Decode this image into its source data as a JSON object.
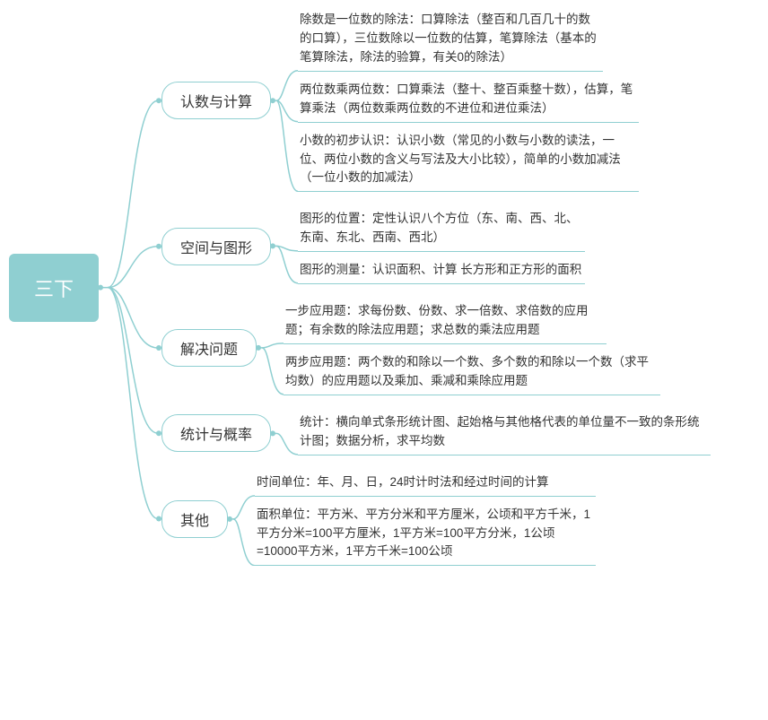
{
  "colors": {
    "accent": "#8fcfd1",
    "text": "#333333",
    "root_bg": "#8fcfd1",
    "root_text": "#ffffff",
    "background": "#ffffff"
  },
  "typography": {
    "root_fontsize": 22,
    "branch_fontsize": 16,
    "leaf_fontsize": 13.5,
    "font_family": "Microsoft YaHei"
  },
  "root": {
    "label": "三下"
  },
  "branches": [
    {
      "label": "认数与计算",
      "leaves": [
        "除数是一位数的除法：口算除法（整百和几百几十的数的口算），三位数除以一位数的估算，笔算除法（基本的笔算除法，除法的验算，有关0的除法）",
        "两位数乘两位数：口算乘法（整十、整百乘整十数），估算，笔算乘法（两位数乘两位数的不进位和进位乘法）",
        "小数的初步认识：认识小数（常见的小数与小数的读法，一位、两位小数的含义与写法及大小比较），简单的小数加减法（一位小数的加减法）"
      ]
    },
    {
      "label": "空间与图形",
      "leaves": [
        "图形的位置：定性认识八个方位（东、南、西、北、东南、东北、西南、西北）",
        "图形的测量：认识面积、计算 长方形和正方形的面积"
      ]
    },
    {
      "label": "解决问题",
      "leaves": [
        "一步应用题：求每份数、份数、求一倍数、求倍数的应用题；有余数的除法应用题；求总数的乘法应用题",
        "两步应用题：两个数的和除以一个数、多个数的和除以一个数（求平均数）的应用题以及乘加、乘减和乘除应用题"
      ]
    },
    {
      "label": "统计与概率",
      "leaves": [
        "统计：横向单式条形统计图、起始格与其他格代表的单位量不一致的条形统计图；数据分析，求平均数"
      ]
    },
    {
      "label": "其他",
      "leaves": [
        "时间单位：年、月、日，24时计时法和经过时间的计算",
        "面积单位：平方米、平方分米和平方厘米，公顷和平方千米，1平方分米=100平方厘米，1平方米=100平方分米，1公顷=10000平方米，1平方千米=100公顷"
      ]
    }
  ],
  "layout": {
    "leaf_maxwidths": [
      [
        340,
        380,
        380
      ],
      [
        320,
        400
      ],
      [
        360,
        420
      ],
      [
        460
      ],
      [
        400,
        380
      ]
    ],
    "root_to_branch_conn_width": 70,
    "branch_to_leaf_conn_width": 30
  }
}
